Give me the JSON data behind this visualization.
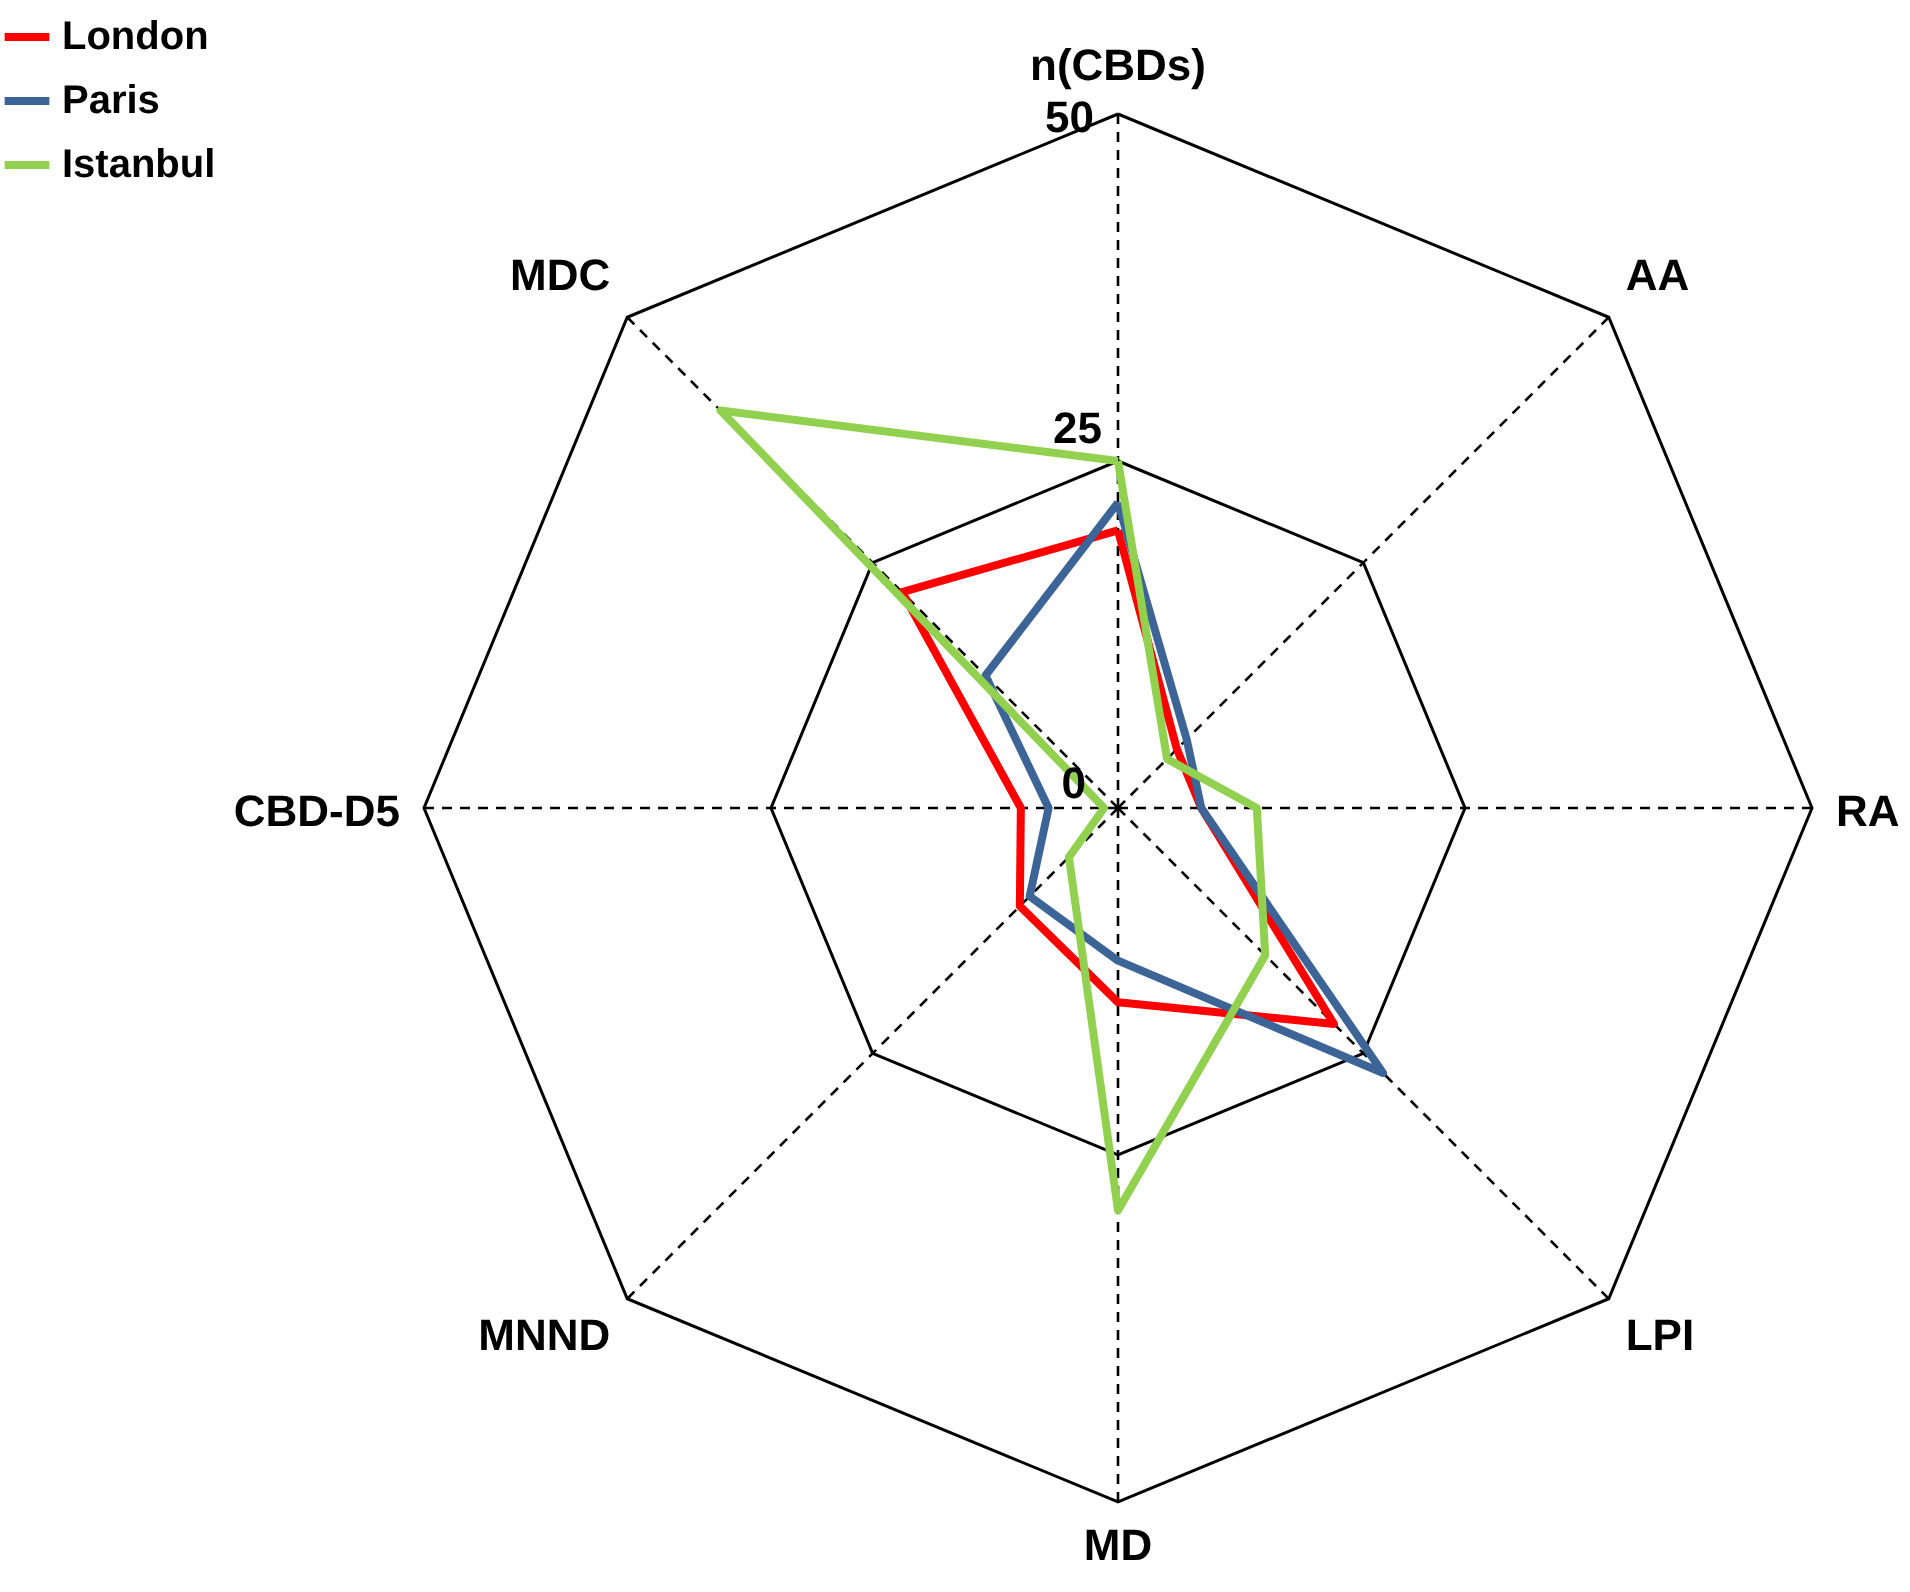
{
  "chart_data": {
    "type": "radar",
    "categories": [
      "n(CBDs)",
      "AA",
      "RA",
      "LPI",
      "MD",
      "MNND",
      "CBD-D5",
      "MDC"
    ],
    "ylim": [
      0,
      50
    ],
    "yticks": [
      0,
      25,
      50
    ],
    "grid": true,
    "legend": "top left",
    "series": [
      {
        "name": "London",
        "color": "#ff0000",
        "values": [
          20,
          6,
          6,
          22,
          14,
          10,
          7,
          22
        ]
      },
      {
        "name": "Paris",
        "color": "#3d6496",
        "values": [
          22,
          7,
          6,
          27,
          11,
          9,
          5,
          13.5
        ]
      },
      {
        "name": "Istanbul",
        "color": "#92d050",
        "values": [
          25,
          5,
          10,
          15,
          29,
          5,
          1,
          40.5
        ]
      }
    ]
  }
}
